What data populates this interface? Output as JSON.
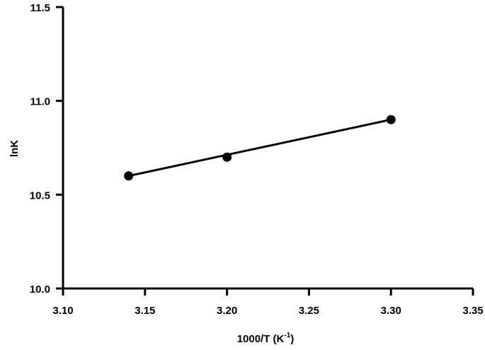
{
  "chart_data": {
    "type": "scatter",
    "title": "",
    "xlabel": "1000/T (K",
    "xlabel_sup": "-1",
    "xlabel_close": ")",
    "ylabel": "lnK",
    "xlim": [
      3.1,
      3.35
    ],
    "ylim": [
      10.0,
      11.5
    ],
    "x_ticks": [
      "3.10",
      "3.15",
      "3.20",
      "3.25",
      "3.30",
      "3.35"
    ],
    "y_ticks": [
      "10.0",
      "10.5",
      "11.0",
      "11.5"
    ],
    "grid": false,
    "series": [
      {
        "x": [
          3.14,
          3.2,
          3.3
        ],
        "y": [
          10.6,
          10.7,
          10.9
        ],
        "marker": "circle",
        "color": "#000000",
        "fit_line": {
          "x": [
            3.14,
            3.3
          ],
          "y": [
            10.6,
            10.9
          ]
        }
      }
    ]
  }
}
